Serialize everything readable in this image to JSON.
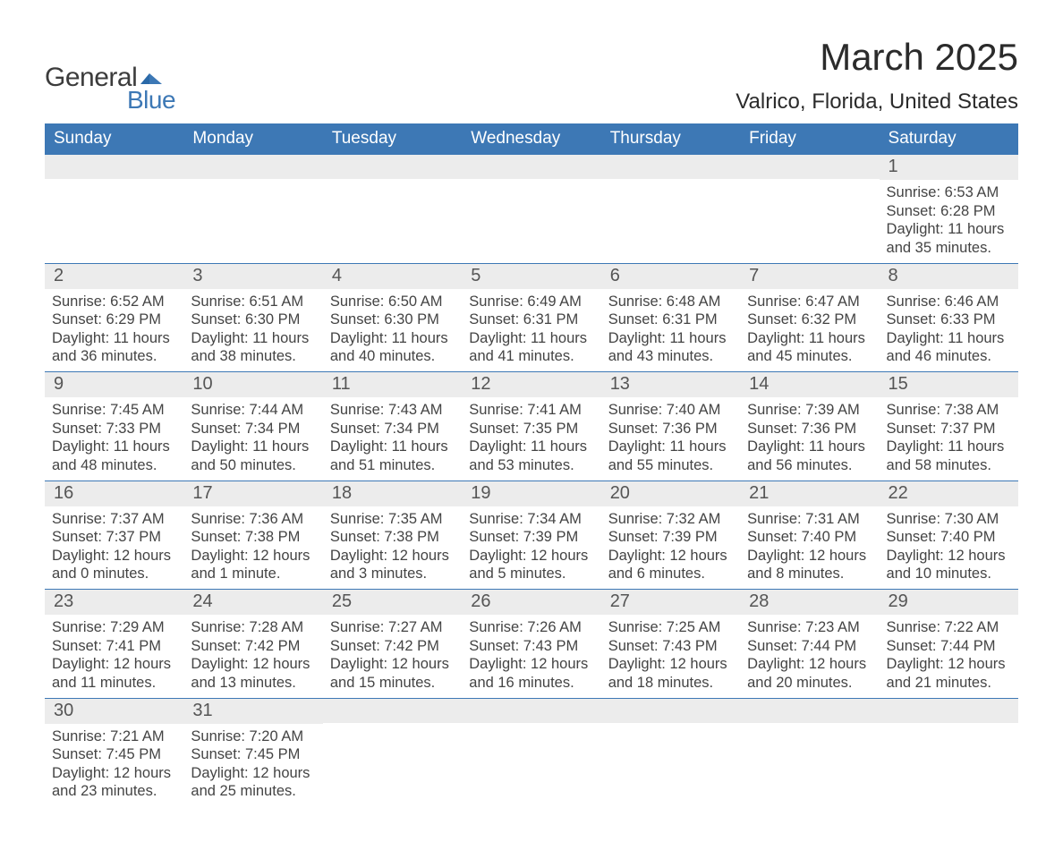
{
  "brand": {
    "name_main": "General",
    "name_sub": "Blue"
  },
  "title": "March 2025",
  "subtitle": "Valrico, Florida, United States",
  "colors": {
    "header_bg": "#3d78b5",
    "header_text": "#ffffff",
    "daynum_bg": "#ececec",
    "daynum_text": "#555555",
    "body_text": "#444444",
    "row_border": "#3d78b5",
    "page_bg": "#ffffff",
    "logo_accent": "#2a69a8"
  },
  "typography": {
    "title_fontsize": 42,
    "subtitle_fontsize": 24,
    "header_fontsize": 19,
    "daynum_fontsize": 20,
    "body_fontsize": 16.5,
    "font_family": "Arial"
  },
  "day_headers": [
    "Sunday",
    "Monday",
    "Tuesday",
    "Wednesday",
    "Thursday",
    "Friday",
    "Saturday"
  ],
  "weeks": [
    [
      null,
      null,
      null,
      null,
      null,
      null,
      {
        "n": "1",
        "sunrise": "6:53 AM",
        "sunset": "6:28 PM",
        "daylight": "11 hours and 35 minutes."
      }
    ],
    [
      {
        "n": "2",
        "sunrise": "6:52 AM",
        "sunset": "6:29 PM",
        "daylight": "11 hours and 36 minutes."
      },
      {
        "n": "3",
        "sunrise": "6:51 AM",
        "sunset": "6:30 PM",
        "daylight": "11 hours and 38 minutes."
      },
      {
        "n": "4",
        "sunrise": "6:50 AM",
        "sunset": "6:30 PM",
        "daylight": "11 hours and 40 minutes."
      },
      {
        "n": "5",
        "sunrise": "6:49 AM",
        "sunset": "6:31 PM",
        "daylight": "11 hours and 41 minutes."
      },
      {
        "n": "6",
        "sunrise": "6:48 AM",
        "sunset": "6:31 PM",
        "daylight": "11 hours and 43 minutes."
      },
      {
        "n": "7",
        "sunrise": "6:47 AM",
        "sunset": "6:32 PM",
        "daylight": "11 hours and 45 minutes."
      },
      {
        "n": "8",
        "sunrise": "6:46 AM",
        "sunset": "6:33 PM",
        "daylight": "11 hours and 46 minutes."
      }
    ],
    [
      {
        "n": "9",
        "sunrise": "7:45 AM",
        "sunset": "7:33 PM",
        "daylight": "11 hours and 48 minutes."
      },
      {
        "n": "10",
        "sunrise": "7:44 AM",
        "sunset": "7:34 PM",
        "daylight": "11 hours and 50 minutes."
      },
      {
        "n": "11",
        "sunrise": "7:43 AM",
        "sunset": "7:34 PM",
        "daylight": "11 hours and 51 minutes."
      },
      {
        "n": "12",
        "sunrise": "7:41 AM",
        "sunset": "7:35 PM",
        "daylight": "11 hours and 53 minutes."
      },
      {
        "n": "13",
        "sunrise": "7:40 AM",
        "sunset": "7:36 PM",
        "daylight": "11 hours and 55 minutes."
      },
      {
        "n": "14",
        "sunrise": "7:39 AM",
        "sunset": "7:36 PM",
        "daylight": "11 hours and 56 minutes."
      },
      {
        "n": "15",
        "sunrise": "7:38 AM",
        "sunset": "7:37 PM",
        "daylight": "11 hours and 58 minutes."
      }
    ],
    [
      {
        "n": "16",
        "sunrise": "7:37 AM",
        "sunset": "7:37 PM",
        "daylight": "12 hours and 0 minutes."
      },
      {
        "n": "17",
        "sunrise": "7:36 AM",
        "sunset": "7:38 PM",
        "daylight": "12 hours and 1 minute."
      },
      {
        "n": "18",
        "sunrise": "7:35 AM",
        "sunset": "7:38 PM",
        "daylight": "12 hours and 3 minutes."
      },
      {
        "n": "19",
        "sunrise": "7:34 AM",
        "sunset": "7:39 PM",
        "daylight": "12 hours and 5 minutes."
      },
      {
        "n": "20",
        "sunrise": "7:32 AM",
        "sunset": "7:39 PM",
        "daylight": "12 hours and 6 minutes."
      },
      {
        "n": "21",
        "sunrise": "7:31 AM",
        "sunset": "7:40 PM",
        "daylight": "12 hours and 8 minutes."
      },
      {
        "n": "22",
        "sunrise": "7:30 AM",
        "sunset": "7:40 PM",
        "daylight": "12 hours and 10 minutes."
      }
    ],
    [
      {
        "n": "23",
        "sunrise": "7:29 AM",
        "sunset": "7:41 PM",
        "daylight": "12 hours and 11 minutes."
      },
      {
        "n": "24",
        "sunrise": "7:28 AM",
        "sunset": "7:42 PM",
        "daylight": "12 hours and 13 minutes."
      },
      {
        "n": "25",
        "sunrise": "7:27 AM",
        "sunset": "7:42 PM",
        "daylight": "12 hours and 15 minutes."
      },
      {
        "n": "26",
        "sunrise": "7:26 AM",
        "sunset": "7:43 PM",
        "daylight": "12 hours and 16 minutes."
      },
      {
        "n": "27",
        "sunrise": "7:25 AM",
        "sunset": "7:43 PM",
        "daylight": "12 hours and 18 minutes."
      },
      {
        "n": "28",
        "sunrise": "7:23 AM",
        "sunset": "7:44 PM",
        "daylight": "12 hours and 20 minutes."
      },
      {
        "n": "29",
        "sunrise": "7:22 AM",
        "sunset": "7:44 PM",
        "daylight": "12 hours and 21 minutes."
      }
    ],
    [
      {
        "n": "30",
        "sunrise": "7:21 AM",
        "sunset": "7:45 PM",
        "daylight": "12 hours and 23 minutes."
      },
      {
        "n": "31",
        "sunrise": "7:20 AM",
        "sunset": "7:45 PM",
        "daylight": "12 hours and 25 minutes."
      },
      null,
      null,
      null,
      null,
      null
    ]
  ],
  "labels": {
    "sunrise": "Sunrise:",
    "sunset": "Sunset:",
    "daylight": "Daylight:"
  }
}
